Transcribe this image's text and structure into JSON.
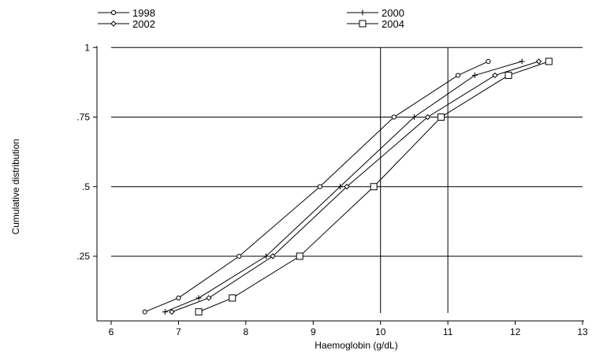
{
  "chart_data": {
    "type": "line",
    "xlabel": "Haemoglobin (g/dL)",
    "ylabel": "Cumulative distribution",
    "xlim": [
      6,
      13
    ],
    "ylim": [
      0.05,
      1
    ],
    "x_ticks": [
      6,
      7,
      8,
      9,
      10,
      11,
      12,
      13
    ],
    "y_ticks": [
      {
        "value": 1,
        "label": "1"
      },
      {
        "value": 0.75,
        "label": ".75"
      },
      {
        "value": 0.5,
        "label": ".5"
      },
      {
        "value": 0.25,
        "label": ".25"
      }
    ],
    "reference_lines_x": [
      10,
      11
    ],
    "grid": "horizontal",
    "legend_position": "top",
    "series": [
      {
        "name": "1998",
        "marker": "circle",
        "points": [
          [
            6.5,
            0.05
          ],
          [
            7.0,
            0.1
          ],
          [
            7.9,
            0.25
          ],
          [
            9.1,
            0.5
          ],
          [
            10.2,
            0.75
          ],
          [
            11.15,
            0.9
          ],
          [
            11.6,
            0.95
          ]
        ]
      },
      {
        "name": "2000",
        "marker": "plus",
        "points": [
          [
            6.8,
            0.05
          ],
          [
            7.3,
            0.1
          ],
          [
            8.3,
            0.25
          ],
          [
            9.4,
            0.5
          ],
          [
            10.5,
            0.75
          ],
          [
            11.4,
            0.9
          ],
          [
            12.1,
            0.95
          ]
        ]
      },
      {
        "name": "2002",
        "marker": "diamond",
        "points": [
          [
            6.9,
            0.05
          ],
          [
            7.45,
            0.1
          ],
          [
            8.4,
            0.25
          ],
          [
            9.5,
            0.5
          ],
          [
            10.7,
            0.75
          ],
          [
            11.7,
            0.9
          ],
          [
            12.35,
            0.95
          ]
        ]
      },
      {
        "name": "2004",
        "marker": "square",
        "points": [
          [
            7.3,
            0.05
          ],
          [
            7.8,
            0.1
          ],
          [
            8.8,
            0.25
          ],
          [
            9.9,
            0.5
          ],
          [
            10.9,
            0.75
          ],
          [
            11.9,
            0.9
          ],
          [
            12.5,
            0.95
          ]
        ]
      }
    ]
  }
}
